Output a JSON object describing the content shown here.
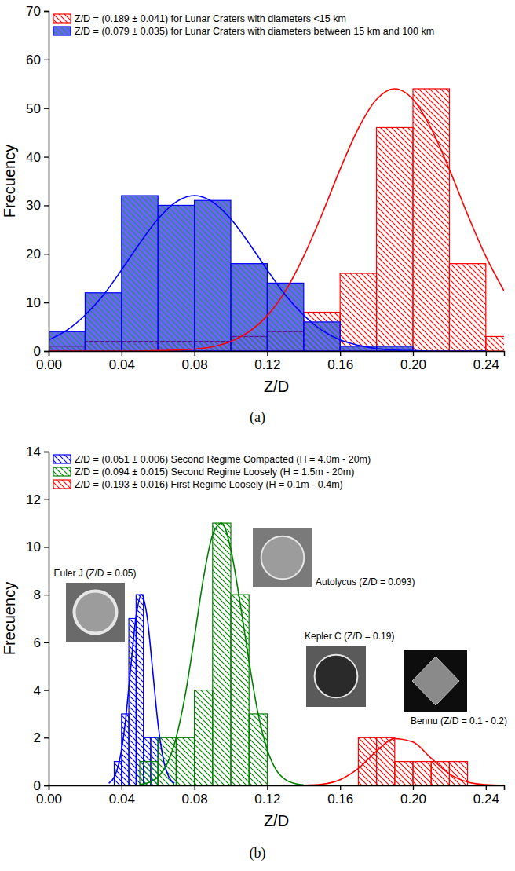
{
  "chart_data": [
    {
      "type": "histogram",
      "title": "(a)",
      "x_label": "Z/D",
      "y_label": "Frecuency",
      "xlim": [
        0,
        0.25
      ],
      "ylim": [
        0,
        70
      ],
      "xticks": [
        {
          "value": 0,
          "label": "0.00"
        },
        0.04,
        0.08,
        0.12,
        0.16,
        {
          "value": 0.2,
          "label": "0.20"
        },
        0.24
      ],
      "yticks": [
        0,
        10,
        20,
        30,
        40,
        50,
        60,
        70
      ],
      "legend": "upper left",
      "series": [
        {
          "name": "Z/D = (0.189 ± 0.041) for Lunar Craters with diameters <15 km",
          "type": "histogram",
          "color": "#ff0000",
          "bins": [
            0,
            0.02,
            0.04,
            0.06,
            0.08,
            0.1,
            0.12,
            0.14,
            0.16,
            0.18,
            0.2,
            0.22,
            0.24,
            0.26
          ],
          "values": [
            1,
            2,
            2,
            2,
            2,
            3,
            4,
            8,
            16,
            46,
            54,
            18,
            3
          ]
        },
        {
          "name": "Z/D = (0.079 ± 0.035) for Lunar Craters with diameters between 15 km and 100 km",
          "type": "histogram",
          "color": "#0000ff",
          "bins": [
            0,
            0.02,
            0.04,
            0.06,
            0.08,
            0.1,
            0.12,
            0.14,
            0.16,
            0.18,
            0.2
          ],
          "values": [
            4,
            12,
            32,
            30,
            31,
            18,
            14,
            6,
            1,
            1
          ]
        },
        {
          "type": "line",
          "color": "#ff0000",
          "x": [
            0,
            0.01,
            0.02,
            0.03,
            0.04,
            0.05,
            0.06,
            0.07,
            0.08,
            0.09,
            0.1,
            0.11,
            0.12,
            0.13,
            0.14,
            0.15,
            0.16,
            0.17,
            0.18,
            0.19,
            0.2,
            0.21,
            0.22,
            0.23,
            0.24,
            0.25
          ],
          "values": [
            0,
            0,
            0,
            0,
            0,
            0,
            0.1,
            0.2,
            0.4,
            0.9,
            2.0,
            4.0,
            7.3,
            12.4,
            19.5,
            28.1,
            37.4,
            45.8,
            51.8,
            54,
            51.8,
            45.8,
            37.4,
            28.1,
            19.5,
            12.4
          ]
        },
        {
          "type": "line",
          "color": "#0000ff",
          "x": [
            0,
            0.01,
            0.02,
            0.03,
            0.04,
            0.05,
            0.06,
            0.07,
            0.08,
            0.09,
            0.1,
            0.11,
            0.12,
            0.13,
            0.14,
            0.15,
            0.16,
            0.17,
            0.18,
            0.19,
            0.2,
            0.21,
            0.22,
            0.23,
            0.24
          ],
          "values": [
            2.3,
            4.3,
            7.4,
            11.5,
            16.7,
            22.2,
            27.2,
            30.7,
            32,
            30.7,
            27.2,
            22.2,
            16.7,
            11.5,
            7.4,
            4.3,
            2.3,
            1.2,
            0.5,
            0.2,
            0.1,
            0,
            0,
            0,
            0
          ]
        }
      ]
    },
    {
      "type": "histogram",
      "title": "(b)",
      "x_label": "Z/D",
      "y_label": "Frecuency",
      "xlim": [
        0,
        0.25
      ],
      "ylim": [
        0,
        14
      ],
      "xticks": [
        {
          "value": 0,
          "label": "0.00"
        },
        0.04,
        0.08,
        0.12,
        0.16,
        {
          "value": 0.2,
          "label": "0.20"
        },
        0.24
      ],
      "yticks": [
        0,
        2,
        4,
        6,
        8,
        10,
        12,
        14
      ],
      "legend": "upper left",
      "annotations": [
        "Euler J (Z/D = 0.05)",
        "Autolycus (Z/D = 0.093)",
        "Kepler C (Z/D = 0.19)",
        "Bennu (Z/D = 0.1 - 0.2)"
      ],
      "series": [
        {
          "name": "Z/D = (0.051 ± 0.006) Second Regime Compacted (H = 4.0m - 20m)",
          "type": "histogram",
          "color": "#0000ff",
          "bins": [
            0.036,
            0.04,
            0.044,
            0.048,
            0.052,
            0.056,
            0.06
          ],
          "values": [
            1,
            3,
            7,
            8,
            2,
            2
          ]
        },
        {
          "name": "Z/D = (0.094 ± 0.015) Second Regime Loosely (H = 1.5m - 20m)",
          "type": "histogram",
          "color": "#008000",
          "bins": [
            0.05,
            0.06,
            0.07,
            0.08,
            0.09,
            0.1,
            0.11,
            0.12
          ],
          "values": [
            1,
            2,
            2,
            4,
            11,
            8,
            3
          ]
        },
        {
          "name": "Z/D = (0.193 ± 0.016) First Regime Loosely (H = 0.1m - 0.4m)",
          "type": "histogram",
          "color": "#ff0000",
          "bins": [
            0.17,
            0.18,
            0.19,
            0.2,
            0.21,
            0.22,
            0.23
          ],
          "values": [
            2,
            2,
            1,
            1,
            1,
            1
          ]
        },
        {
          "type": "line",
          "color": "#0000ff",
          "x": [
            0.033,
            0.036,
            0.039,
            0.042,
            0.045,
            0.048,
            0.051,
            0.054,
            0.057,
            0.06,
            0.063,
            0.066,
            0.069
          ],
          "values": [
            0.09,
            0.35,
            1.08,
            2.6,
            4.9,
            7.1,
            8,
            7.1,
            4.9,
            2.6,
            1.08,
            0.35,
            0.09
          ]
        },
        {
          "type": "line",
          "color": "#008000",
          "x": [
            0.05,
            0.055,
            0.06,
            0.065,
            0.07,
            0.075,
            0.08,
            0.085,
            0.09,
            0.095,
            0.1,
            0.105,
            0.11,
            0.115,
            0.12,
            0.125,
            0.13,
            0.135,
            0.14
          ],
          "values": [
            0.04,
            0.12,
            0.36,
            0.9,
            2.0,
            3.8,
            6.2,
            8.7,
            10.5,
            11.0,
            9.9,
            7.7,
            5.2,
            3.0,
            1.5,
            0.64,
            0.24,
            0.08,
            0.02
          ]
        },
        {
          "type": "line",
          "color": "#ff0000",
          "x": [
            0.14,
            0.15,
            0.16,
            0.17,
            0.18,
            0.19,
            0.2,
            0.21,
            0.22,
            0.23,
            0.24,
            0.25
          ],
          "values": [
            0.01,
            0.05,
            0.24,
            0.71,
            1.44,
            1.96,
            1.82,
            1.14,
            0.48,
            0.14,
            0.03,
            0
          ]
        }
      ]
    }
  ]
}
